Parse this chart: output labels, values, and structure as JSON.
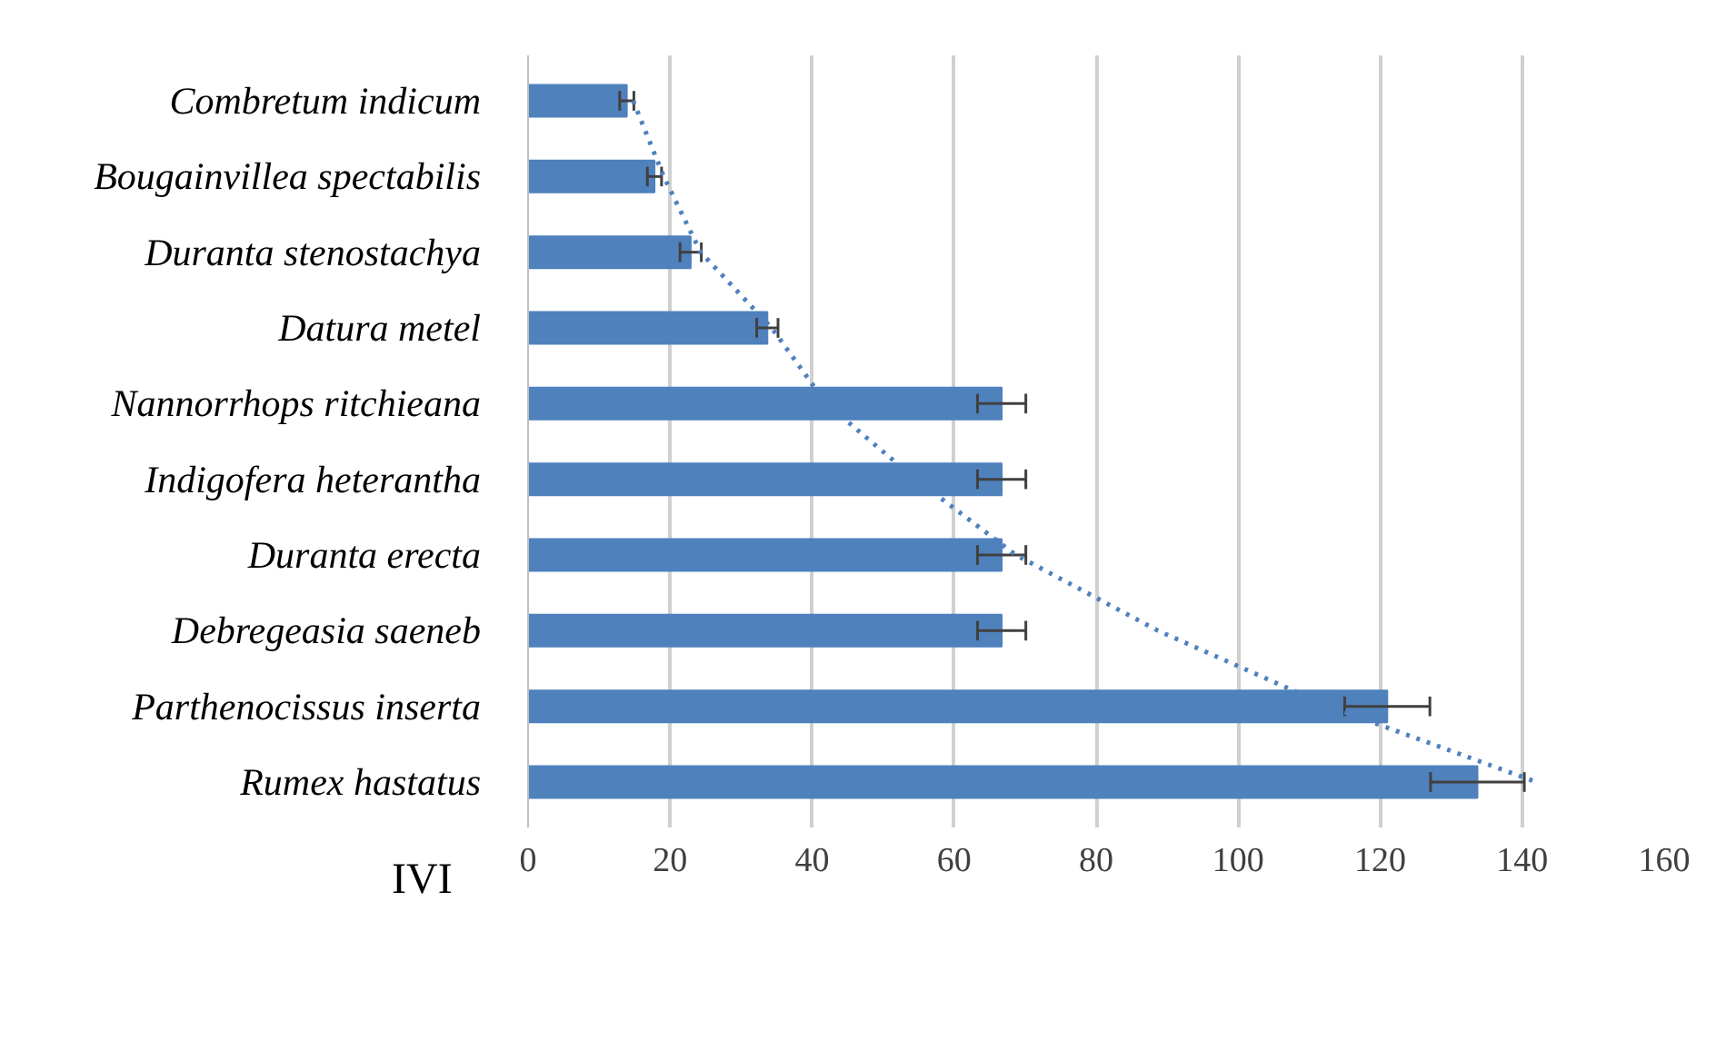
{
  "chart_data": {
    "type": "bar",
    "orientation": "horizontal",
    "xlabel": "IVI",
    "categories": [
      "Combretum indicum",
      "Bougainvillea spectabilis",
      "Duranta stenostachya",
      "Datura metel",
      "Nannorrhops ritchieana",
      "Indigofera heterantha",
      "Duranta erecta",
      "Debregeasia saeneb",
      "Parthenocissus inserta",
      "Rumex hastatus"
    ],
    "series": [
      {
        "type": "bar",
        "color": "#4f81bd",
        "values": [
          13.9,
          17.8,
          22.9,
          33.7,
          66.7,
          66.7,
          66.7,
          66.7,
          121,
          133.7
        ],
        "errors": [
          1,
          1,
          1.5,
          1.5,
          3.4,
          3.4,
          3.4,
          3.4,
          6,
          6.6
        ]
      },
      {
        "type": "line",
        "color": "#4f81bd",
        "line_style": "dotted",
        "values": [
          14.8,
          19.1,
          24.3,
          34.3,
          42,
          54.6,
          68.7,
          88.7,
          112.8,
          142
        ]
      }
    ],
    "xlim": [
      0,
      160
    ],
    "xticks": [
      0,
      20,
      40,
      60,
      80,
      100,
      120,
      140,
      160
    ],
    "grid": "x"
  }
}
